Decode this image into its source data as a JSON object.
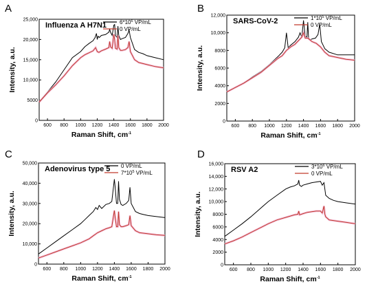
{
  "chart_data": [
    {
      "type": "line",
      "panel_label": "A",
      "title": "Influenza A H7N1",
      "xlabel": "Raman Shift, cm",
      "xlabel_sup": "-1",
      "ylabel": "Intensity, a.u.",
      "xlim": [
        500,
        2000
      ],
      "ylim": [
        0,
        25000
      ],
      "xticks": [
        600,
        800,
        1000,
        1200,
        1400,
        1600,
        1800,
        2000
      ],
      "xtick_labels": [
        "600",
        "800",
        "1000",
        "1200",
        "1400",
        "1600",
        "1800",
        "2000"
      ],
      "yticks": [
        0,
        5000,
        10000,
        15000,
        20000,
        25000
      ],
      "ytick_labels": [
        "0",
        "5000",
        "10,000",
        "15,000",
        "20,000",
        "25,000"
      ],
      "legend_position": "top-right",
      "series": [
        {
          "name": "6*10^6 VP/mL",
          "legend": {
            "pre": "6*10",
            "sup": "6",
            "post": " VP/mL"
          },
          "color": "#000000",
          "x": [
            500,
            600,
            700,
            800,
            900,
            1000,
            1050,
            1100,
            1150,
            1175,
            1190,
            1200,
            1210,
            1225,
            1250,
            1300,
            1340,
            1350,
            1360,
            1380,
            1400,
            1410,
            1420,
            1440,
            1450,
            1460,
            1480,
            1500,
            1540,
            1570,
            1585,
            1600,
            1650,
            1700,
            1750,
            1800,
            1900,
            2000
          ],
          "y": [
            4500,
            7000,
            9500,
            12500,
            15500,
            17000,
            18200,
            19000,
            19700,
            20500,
            21500,
            20000,
            20800,
            20500,
            21000,
            21200,
            21800,
            22500,
            21800,
            21000,
            23500,
            23700,
            21000,
            20500,
            23300,
            21000,
            20000,
            20200,
            20500,
            21500,
            22300,
            20500,
            17500,
            16800,
            16500,
            16000,
            15500,
            15000
          ]
        },
        {
          "name": "0 VP/mL",
          "legend": {
            "pre": "0 VP/mL",
            "sup": "",
            "post": ""
          },
          "color": "#c0392b",
          "x": [
            500,
            600,
            700,
            800,
            900,
            1000,
            1050,
            1100,
            1150,
            1180,
            1200,
            1220,
            1250,
            1300,
            1340,
            1350,
            1360,
            1380,
            1400,
            1410,
            1420,
            1440,
            1450,
            1460,
            1480,
            1500,
            1540,
            1570,
            1585,
            1600,
            1650,
            1700,
            1800,
            1900,
            2000
          ],
          "y": [
            4500,
            6800,
            8800,
            11000,
            13500,
            15500,
            16200,
            16700,
            17200,
            18000,
            17000,
            16800,
            17200,
            17600,
            18000,
            19500,
            18200,
            17800,
            21300,
            20000,
            17800,
            17600,
            21000,
            18000,
            17300,
            17300,
            17500,
            18000,
            19500,
            17000,
            15000,
            14300,
            13800,
            13300,
            13000
          ]
        }
      ]
    },
    {
      "type": "line",
      "panel_label": "B",
      "title": "SARS-CoV-2",
      "xlabel": "Raman Shift, cm",
      "xlabel_sup": "-1",
      "ylabel": "Intensity, a.u.",
      "xlim": [
        500,
        2000
      ],
      "ylim": [
        0,
        12000
      ],
      "xticks": [
        600,
        800,
        1000,
        1200,
        1400,
        1600,
        1800,
        2000
      ],
      "xtick_labels": [
        "600",
        "800",
        "1000",
        "1200",
        "1400",
        "1600",
        "1800",
        "2000"
      ],
      "yticks": [
        0,
        2000,
        4000,
        6000,
        8000,
        10000,
        12000
      ],
      "ytick_labels": [
        "0",
        "2000",
        "4000",
        "6000",
        "8000",
        "10,000",
        "12,000"
      ],
      "legend_position": "top-right",
      "series": [
        {
          "name": "1*10^5 VP/mL",
          "legend": {
            "pre": "1*10",
            "sup": "5",
            "post": " VP/mL"
          },
          "color": "#000000",
          "x": [
            500,
            600,
            700,
            800,
            900,
            1000,
            1100,
            1150,
            1180,
            1200,
            1220,
            1250,
            1300,
            1340,
            1360,
            1380,
            1400,
            1420,
            1440,
            1450,
            1460,
            1480,
            1500,
            1540,
            1570,
            1590,
            1610,
            1650,
            1700,
            1800,
            1900,
            2000
          ],
          "y": [
            3300,
            3800,
            4300,
            5000,
            5600,
            6400,
            7300,
            7800,
            8300,
            10000,
            8300,
            8600,
            9000,
            9500,
            10000,
            9500,
            11400,
            9600,
            9500,
            11200,
            9400,
            9200,
            9300,
            9400,
            9800,
            11000,
            9000,
            8200,
            7800,
            7500,
            7500,
            7500
          ]
        },
        {
          "name": "0 VP/mL",
          "legend": {
            "pre": "0 VP/mL",
            "sup": "",
            "post": ""
          },
          "color": "#c0392b",
          "x": [
            500,
            600,
            700,
            800,
            900,
            1000,
            1100,
            1150,
            1200,
            1250,
            1300,
            1350,
            1380,
            1400,
            1420,
            1450,
            1500,
            1550,
            1600,
            1650,
            1700,
            1800,
            1900,
            2000
          ],
          "y": [
            3300,
            3800,
            4300,
            4900,
            5500,
            6300,
            7100,
            7400,
            8000,
            8400,
            8700,
            9200,
            9500,
            10000,
            9400,
            9400,
            9000,
            8800,
            8400,
            7800,
            7400,
            7200,
            7000,
            6900
          ]
        }
      ]
    },
    {
      "type": "line",
      "panel_label": "C",
      "title": "Adenovirus type 5",
      "xlabel": "Raman Shift, cm",
      "xlabel_sup": "-1",
      "ylabel": "Intensity, a.u.",
      "xlim": [
        500,
        2000
      ],
      "ylim": [
        0,
        50000
      ],
      "xticks": [
        600,
        800,
        1000,
        1200,
        1400,
        1600,
        1800,
        2000
      ],
      "xtick_labels": [
        "600",
        "800",
        "1000",
        "1200",
        "1400",
        "1600",
        "1800",
        "2000"
      ],
      "yticks": [
        0,
        10000,
        20000,
        30000,
        40000,
        50000
      ],
      "ytick_labels": [
        "0",
        "10,000",
        "20,000",
        "30,000",
        "40,000",
        "50,000"
      ],
      "legend_position": "top-right",
      "series": [
        {
          "name": "0 VP/mL",
          "legend": {
            "pre": "0 VP/mL",
            "sup": "",
            "post": ""
          },
          "color": "#000000",
          "x": [
            500,
            600,
            700,
            800,
            900,
            1000,
            1050,
            1100,
            1150,
            1180,
            1200,
            1220,
            1250,
            1300,
            1340,
            1370,
            1400,
            1410,
            1425,
            1440,
            1450,
            1460,
            1480,
            1500,
            1540,
            1570,
            1585,
            1600,
            1650,
            1700,
            1750,
            1800,
            1900,
            2000
          ],
          "y": [
            5000,
            8000,
            11000,
            14000,
            17000,
            20000,
            22000,
            24000,
            26000,
            28000,
            27000,
            29000,
            27500,
            29500,
            30000,
            31000,
            42000,
            38000,
            30000,
            30000,
            41000,
            32000,
            29500,
            29000,
            30000,
            31500,
            38000,
            30000,
            26000,
            25000,
            24500,
            24000,
            23500,
            23000
          ]
        },
        {
          "name": "7*10^5 VP/mL",
          "legend": {
            "pre": "7*10",
            "sup": "5",
            "post": " VP/mL"
          },
          "color": "#c0392b",
          "x": [
            500,
            600,
            700,
            800,
            900,
            1000,
            1100,
            1150,
            1200,
            1250,
            1300,
            1340,
            1370,
            1400,
            1410,
            1425,
            1440,
            1450,
            1460,
            1480,
            1500,
            1540,
            1570,
            1585,
            1600,
            1650,
            1700,
            1800,
            1900,
            2000
          ],
          "y": [
            3000,
            4500,
            6000,
            7500,
            9000,
            10500,
            12500,
            14000,
            15500,
            16500,
            17500,
            18000,
            18500,
            26500,
            23000,
            18500,
            18500,
            26000,
            19500,
            18500,
            18500,
            19000,
            19500,
            24000,
            19000,
            16500,
            15500,
            15000,
            14500,
            14200
          ]
        }
      ]
    },
    {
      "type": "line",
      "panel_label": "D",
      "title": "RSV A2",
      "xlabel": "Raman Shift, cm",
      "xlabel_sup": "-1",
      "ylabel": "Intensity, a.u.",
      "xlim": [
        500,
        2000
      ],
      "ylim": [
        0,
        16000
      ],
      "xticks": [
        600,
        800,
        1000,
        1200,
        1400,
        1600,
        1800,
        2000
      ],
      "xtick_labels": [
        "600",
        "800",
        "1000",
        "1200",
        "1400",
        "1600",
        "1800",
        "2000"
      ],
      "yticks": [
        0,
        2000,
        4000,
        6000,
        8000,
        10000,
        12000,
        14000,
        16000
      ],
      "ytick_labels": [
        "0",
        "2000",
        "4000",
        "6000",
        "8000",
        "10,000",
        "12,000",
        "14,000",
        "16,000"
      ],
      "legend_position": "top-right",
      "series": [
        {
          "name": "3*10^6 VP/mL",
          "legend": {
            "pre": "3*10",
            "sup": "6",
            "post": " VP/mL"
          },
          "color": "#000000",
          "x": [
            500,
            600,
            700,
            800,
            900,
            1000,
            1100,
            1200,
            1250,
            1300,
            1340,
            1350,
            1360,
            1380,
            1400,
            1450,
            1500,
            1550,
            1600,
            1620,
            1640,
            1660,
            1700,
            1750,
            1800,
            1900,
            2000
          ],
          "y": [
            4500,
            5500,
            6500,
            7600,
            8800,
            10000,
            11000,
            12000,
            12300,
            12500,
            12800,
            13400,
            12600,
            12400,
            12600,
            12800,
            13000,
            13100,
            13200,
            12600,
            13000,
            11000,
            10500,
            10200,
            10000,
            9800,
            9600
          ]
        },
        {
          "name": "0 VP/mL",
          "legend": {
            "pre": "0 VP/mL",
            "sup": "",
            "post": ""
          },
          "color": "#c0392b",
          "x": [
            500,
            600,
            700,
            800,
            900,
            1000,
            1100,
            1200,
            1300,
            1340,
            1350,
            1360,
            1400,
            1450,
            1500,
            1550,
            1600,
            1620,
            1640,
            1650,
            1660,
            1700,
            1800,
            1900,
            2000
          ],
          "y": [
            3300,
            3800,
            4400,
            5100,
            5800,
            6500,
            7100,
            7500,
            7900,
            8000,
            8500,
            7900,
            8100,
            8300,
            8400,
            8500,
            8500,
            8200,
            9300,
            8000,
            7600,
            7100,
            6900,
            6700,
            6500
          ]
        }
      ]
    }
  ]
}
